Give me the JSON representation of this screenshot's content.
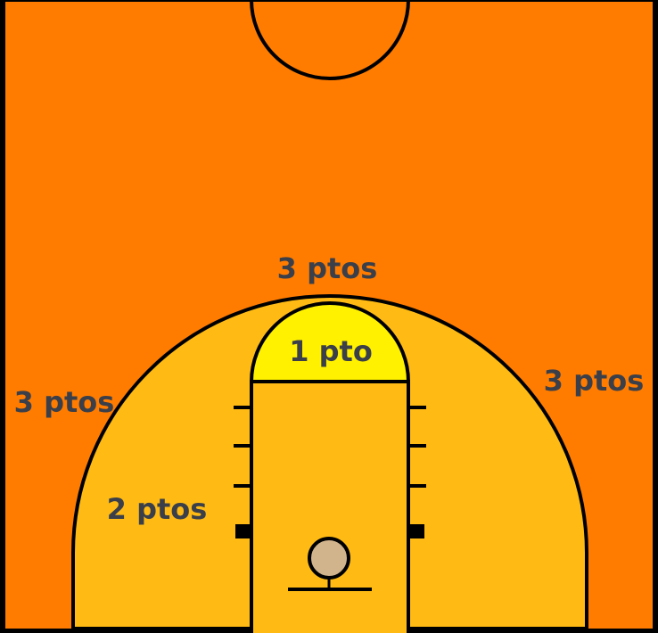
{
  "labels": {
    "three_top": "3 ptos",
    "three_left": "3 ptos",
    "three_right": "3 ptos",
    "two": "2 ptos",
    "one": "1 pto"
  },
  "colors": {
    "outside": "#ff7c00",
    "two_point_zone": "#ffbb14",
    "free_throw_circle": "#fff100",
    "ball": "#d2b48c",
    "lines": "#000000",
    "label_text": "#3a3f4a"
  }
}
